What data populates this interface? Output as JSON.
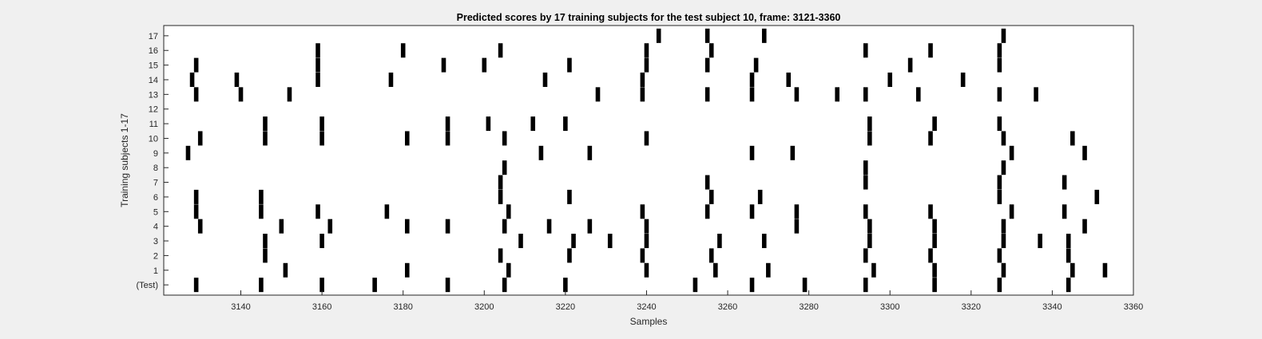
{
  "chart_data": {
    "type": "heatmap",
    "title": "Predicted scores by 17 training subjects for the test subject 10, frame: 3121-3360",
    "xlabel": "Samples",
    "ylabel": "Training subjects 1-17",
    "xlim": [
      3121,
      3360
    ],
    "x_ticks": [
      3140,
      3160,
      3180,
      3200,
      3220,
      3240,
      3260,
      3280,
      3300,
      3320,
      3340,
      3360
    ],
    "row_labels": [
      "(Test)",
      "1",
      "2",
      "3",
      "4",
      "5",
      "6",
      "7",
      "8",
      "9",
      "10",
      "11",
      "12",
      "13",
      "14",
      "15",
      "16",
      "17"
    ],
    "grid": false,
    "colors": {
      "mark": "#000000",
      "plot_bg": "#ffffff",
      "figure_bg": "#f0f0f0"
    },
    "rows": [
      {
        "label": "(Test)",
        "x": [
          3129,
          3145,
          3160,
          3173,
          3191,
          3205,
          3220,
          3252,
          3266,
          3279,
          3294,
          3311,
          3327,
          3344
        ]
      },
      {
        "label": "1",
        "x": [
          3151,
          3181,
          3206,
          3240,
          3257,
          3270,
          3296,
          3311,
          3328,
          3345,
          3353
        ]
      },
      {
        "label": "2",
        "x": [
          3146,
          3204,
          3221,
          3239,
          3256,
          3294,
          3310,
          3327,
          3344
        ]
      },
      {
        "label": "3",
        "x": [
          3146,
          3160,
          3209,
          3222,
          3231,
          3240,
          3258,
          3269,
          3295,
          3311,
          3328,
          3337,
          3344
        ]
      },
      {
        "label": "4",
        "x": [
          3130,
          3150,
          3162,
          3181,
          3191,
          3205,
          3216,
          3226,
          3240,
          3277,
          3295,
          3311,
          3328,
          3348
        ]
      },
      {
        "label": "5",
        "x": [
          3129,
          3145,
          3159,
          3176,
          3206,
          3239,
          3255,
          3266,
          3277,
          3294,
          3310,
          3330,
          3343
        ]
      },
      {
        "label": "6",
        "x": [
          3129,
          3145,
          3204,
          3221,
          3256,
          3268,
          3327,
          3351
        ]
      },
      {
        "label": "7",
        "x": [
          3204,
          3255,
          3294,
          3327,
          3343
        ]
      },
      {
        "label": "8",
        "x": [
          3205,
          3294,
          3328
        ]
      },
      {
        "label": "9",
        "x": [
          3127,
          3214,
          3226,
          3266,
          3276,
          3330,
          3348
        ]
      },
      {
        "label": "10",
        "x": [
          3130,
          3146,
          3160,
          3181,
          3191,
          3205,
          3240,
          3295,
          3310,
          3328,
          3345
        ]
      },
      {
        "label": "11",
        "x": [
          3146,
          3160,
          3191,
          3201,
          3212,
          3220,
          3295,
          3311,
          3327
        ]
      },
      {
        "label": "12",
        "x": []
      },
      {
        "label": "13",
        "x": [
          3129,
          3140,
          3152,
          3228,
          3239,
          3255,
          3266,
          3277,
          3287,
          3294,
          3307,
          3327,
          3336
        ]
      },
      {
        "label": "14",
        "x": [
          3128,
          3139,
          3159,
          3177,
          3215,
          3239,
          3266,
          3275,
          3300,
          3318
        ]
      },
      {
        "label": "15",
        "x": [
          3129,
          3159,
          3190,
          3200,
          3221,
          3240,
          3255,
          3267,
          3305,
          3327
        ]
      },
      {
        "label": "16",
        "x": [
          3159,
          3180,
          3204,
          3240,
          3256,
          3294,
          3310,
          3327
        ]
      },
      {
        "label": "17",
        "x": [
          3243,
          3255,
          3269,
          3328
        ]
      }
    ]
  }
}
